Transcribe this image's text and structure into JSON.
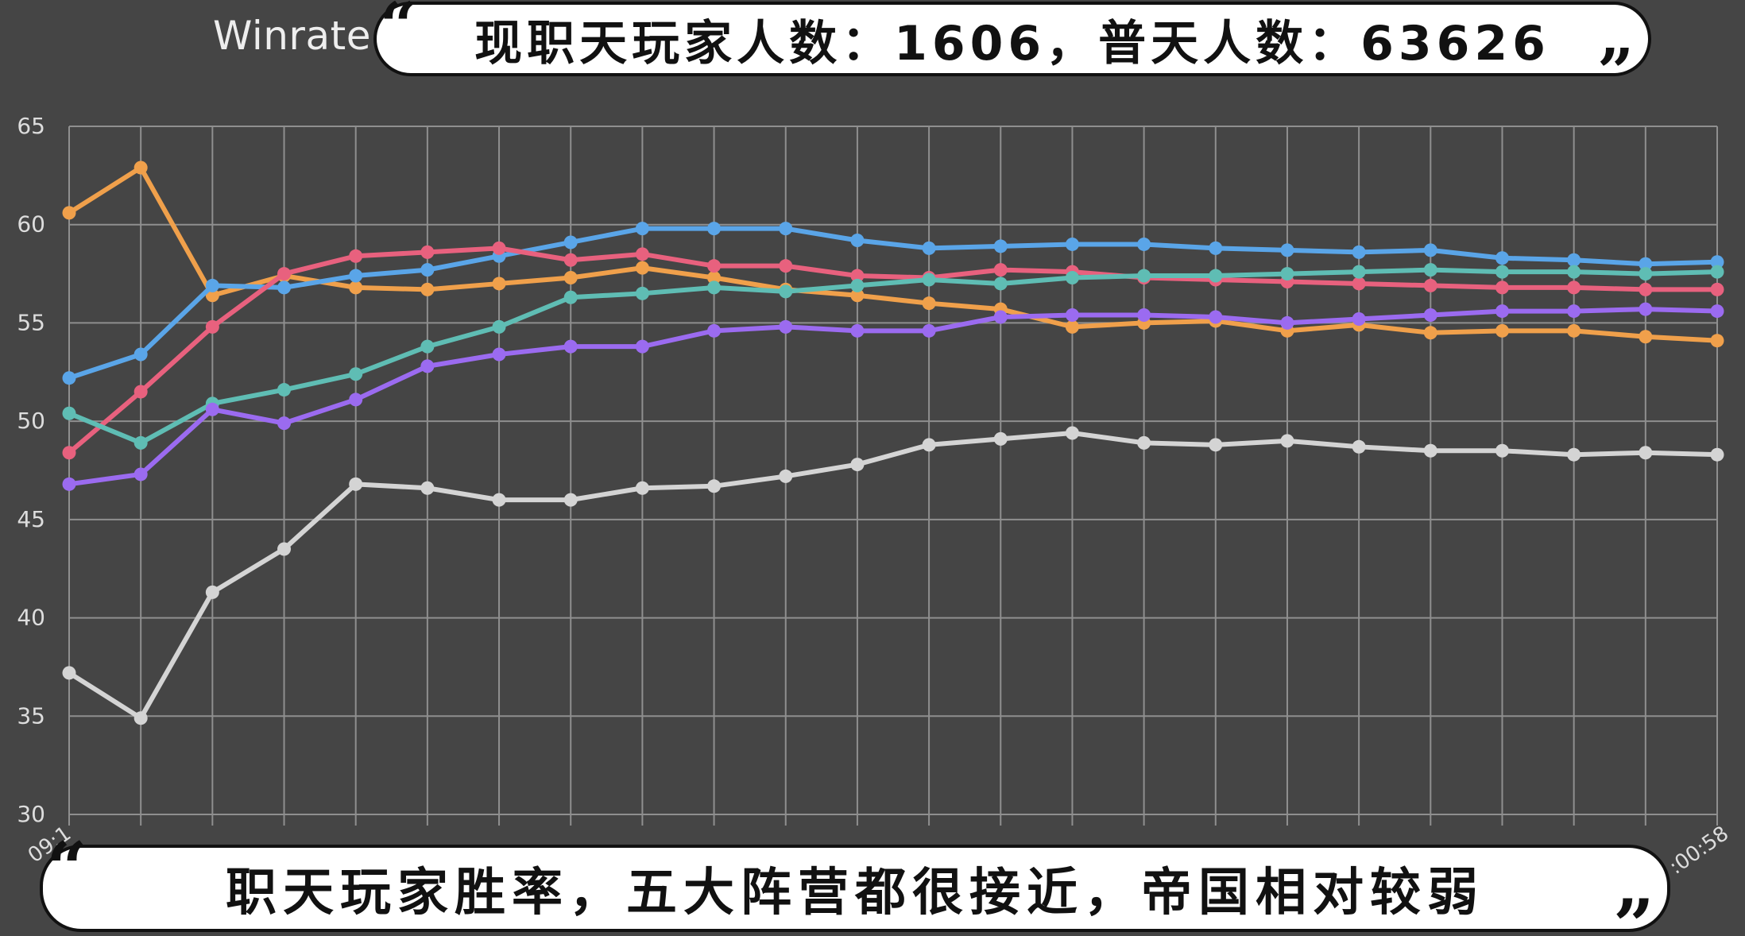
{
  "chart_data": {
    "type": "line",
    "title": "Winrate",
    "xlabel": "",
    "ylabel": "",
    "ylim": [
      30,
      65
    ],
    "yticks": [
      30,
      35,
      40,
      45,
      50,
      55,
      60,
      65
    ],
    "x_first_label": "09:1",
    "x_last_label": ":00:58",
    "grid": true,
    "x": [
      1,
      2,
      3,
      4,
      5,
      6,
      7,
      8,
      9,
      10,
      11,
      12,
      13,
      14,
      15,
      16,
      17,
      18,
      19,
      20,
      21,
      22,
      23,
      24
    ],
    "series": [
      {
        "color": "#f0a04b",
        "values": [
          60.6,
          62.9,
          56.4,
          57.4,
          56.8,
          56.7,
          57.0,
          57.3,
          57.8,
          57.3,
          56.7,
          56.4,
          56.0,
          55.7,
          54.8,
          55.0,
          55.1,
          54.6,
          54.9,
          54.5,
          54.6,
          54.6,
          54.3,
          54.1
        ]
      },
      {
        "color": "#5aa5e8",
        "values": [
          52.2,
          53.4,
          56.9,
          56.8,
          57.4,
          57.7,
          58.4,
          59.1,
          59.8,
          59.8,
          59.8,
          59.2,
          58.8,
          58.9,
          59.0,
          59.0,
          58.8,
          58.7,
          58.6,
          58.7,
          58.3,
          58.2,
          58.0,
          58.1
        ]
      },
      {
        "color": "#e8617e",
        "values": [
          48.4,
          51.5,
          54.8,
          57.5,
          58.4,
          58.6,
          58.8,
          58.2,
          58.5,
          57.9,
          57.9,
          57.4,
          57.3,
          57.7,
          57.6,
          57.3,
          57.2,
          57.1,
          57.0,
          56.9,
          56.8,
          56.8,
          56.7,
          56.7
        ]
      },
      {
        "color": "#5fbdb4",
        "values": [
          50.4,
          48.9,
          50.9,
          51.6,
          52.4,
          53.8,
          54.8,
          56.3,
          56.5,
          56.8,
          56.6,
          56.9,
          57.2,
          57.0,
          57.3,
          57.4,
          57.4,
          57.5,
          57.6,
          57.7,
          57.6,
          57.6,
          57.5,
          57.6
        ]
      },
      {
        "color": "#9b6bf0",
        "values": [
          46.8,
          47.3,
          50.6,
          49.9,
          51.1,
          52.8,
          53.4,
          53.8,
          53.8,
          54.6,
          54.8,
          54.6,
          54.6,
          55.3,
          55.4,
          55.4,
          55.3,
          55.0,
          55.2,
          55.4,
          55.6,
          55.6,
          55.7,
          55.6
        ]
      },
      {
        "color": "#d4d4d4",
        "values": [
          37.2,
          34.9,
          41.3,
          43.5,
          46.8,
          46.6,
          46.0,
          46.0,
          46.6,
          46.7,
          47.2,
          47.8,
          48.8,
          49.1,
          49.4,
          48.9,
          48.8,
          49.0,
          48.7,
          48.5,
          48.5,
          48.3,
          48.4,
          48.3
        ]
      }
    ]
  },
  "captions": {
    "top": "现职天玩家人数：1606，普天人数：63626",
    "bottom": "职天玩家胜率，五大阵营都很接近，帝国相对较弱"
  },
  "colors": {
    "background": "#454545",
    "grid": "#8f8f8f",
    "axis_text": "#dddddd",
    "bubble_fill": "#ffffff",
    "bubble_border": "#111111"
  }
}
